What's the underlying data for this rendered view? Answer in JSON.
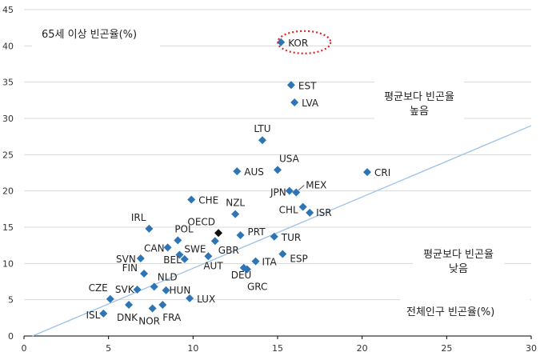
{
  "chart_data": {
    "type": "scatter",
    "ylabel": "65세 이상 빈곤율(%)",
    "xlabel": "전체인구 빈곤율(%)",
    "xlim": [
      0,
      30
    ],
    "ylim": [
      0,
      45
    ],
    "xticks": [
      "0",
      "5",
      "10",
      "15",
      "20",
      "25",
      "30"
    ],
    "yticks": [
      "0",
      "5",
      "10",
      "15",
      "20",
      "25",
      "30",
      "35",
      "40",
      "45"
    ],
    "grid": "horizontal",
    "annotations": {
      "above": [
        "평균보다 빈곤율",
        "높음"
      ],
      "below": [
        "평균보다 빈곤율",
        "낮음"
      ]
    },
    "reference_line": {
      "x": [
        0.5,
        30
      ],
      "y": [
        0,
        29
      ]
    },
    "highlight": "KOR",
    "colors": {
      "marker": "#2e75b6",
      "oecd_marker": "#111111",
      "line": "#9dc3e6",
      "highlight": "#e02020",
      "grid": "#d9d9d9"
    },
    "points": [
      {
        "label": "KOR",
        "x": 15.2,
        "y": 40.5
      },
      {
        "label": "EST",
        "x": 15.8,
        "y": 34.6
      },
      {
        "label": "LVA",
        "x": 16.0,
        "y": 32.2
      },
      {
        "label": "LTU",
        "x": 14.1,
        "y": 27.0
      },
      {
        "label": "USA",
        "x": 15.0,
        "y": 22.9
      },
      {
        "label": "AUS",
        "x": 12.6,
        "y": 22.7
      },
      {
        "label": "CRI",
        "x": 20.3,
        "y": 22.6
      },
      {
        "label": "MEX",
        "x": 16.1,
        "y": 19.8
      },
      {
        "label": "JPN",
        "x": 15.7,
        "y": 20.0
      },
      {
        "label": "NZL",
        "x": 12.5,
        "y": 16.8
      },
      {
        "label": "CHE",
        "x": 9.9,
        "y": 18.8
      },
      {
        "label": "CHL",
        "x": 16.5,
        "y": 17.8
      },
      {
        "label": "ISR",
        "x": 16.9,
        "y": 17.0
      },
      {
        "label": "OECD",
        "x": 11.5,
        "y": 14.2
      },
      {
        "label": "IRL",
        "x": 7.4,
        "y": 14.8
      },
      {
        "label": "POL",
        "x": 9.1,
        "y": 13.2
      },
      {
        "label": "CAN",
        "x": 8.5,
        "y": 12.2
      },
      {
        "label": "SWE",
        "x": 9.2,
        "y": 11.2
      },
      {
        "label": "PRT",
        "x": 12.8,
        "y": 13.9
      },
      {
        "label": "GBR",
        "x": 11.3,
        "y": 13.1
      },
      {
        "label": "TUR",
        "x": 14.8,
        "y": 13.7
      },
      {
        "label": "SVN",
        "x": 6.9,
        "y": 10.7
      },
      {
        "label": "BEL",
        "x": 9.5,
        "y": 10.6
      },
      {
        "label": "AUT",
        "x": 10.9,
        "y": 11.0
      },
      {
        "label": "DEU",
        "x": 13.0,
        "y": 9.4
      },
      {
        "label": "ITA",
        "x": 13.7,
        "y": 10.3
      },
      {
        "label": "ESP",
        "x": 15.3,
        "y": 11.3
      },
      {
        "label": "GRC",
        "x": 13.2,
        "y": 9.2
      },
      {
        "label": "FIN",
        "x": 7.1,
        "y": 8.6
      },
      {
        "label": "NLD",
        "x": 7.7,
        "y": 6.8
      },
      {
        "label": "HUN",
        "x": 8.4,
        "y": 6.3
      },
      {
        "label": "CZE",
        "x": 5.1,
        "y": 5.1
      },
      {
        "label": "SVK",
        "x": 6.7,
        "y": 6.4
      },
      {
        "label": "LUX",
        "x": 9.8,
        "y": 5.2
      },
      {
        "label": "ISL",
        "x": 4.7,
        "y": 3.1
      },
      {
        "label": "DNK",
        "x": 6.2,
        "y": 4.3
      },
      {
        "label": "NOR",
        "x": 7.6,
        "y": 3.8
      },
      {
        "label": "FRA",
        "x": 8.2,
        "y": 4.3
      }
    ]
  }
}
